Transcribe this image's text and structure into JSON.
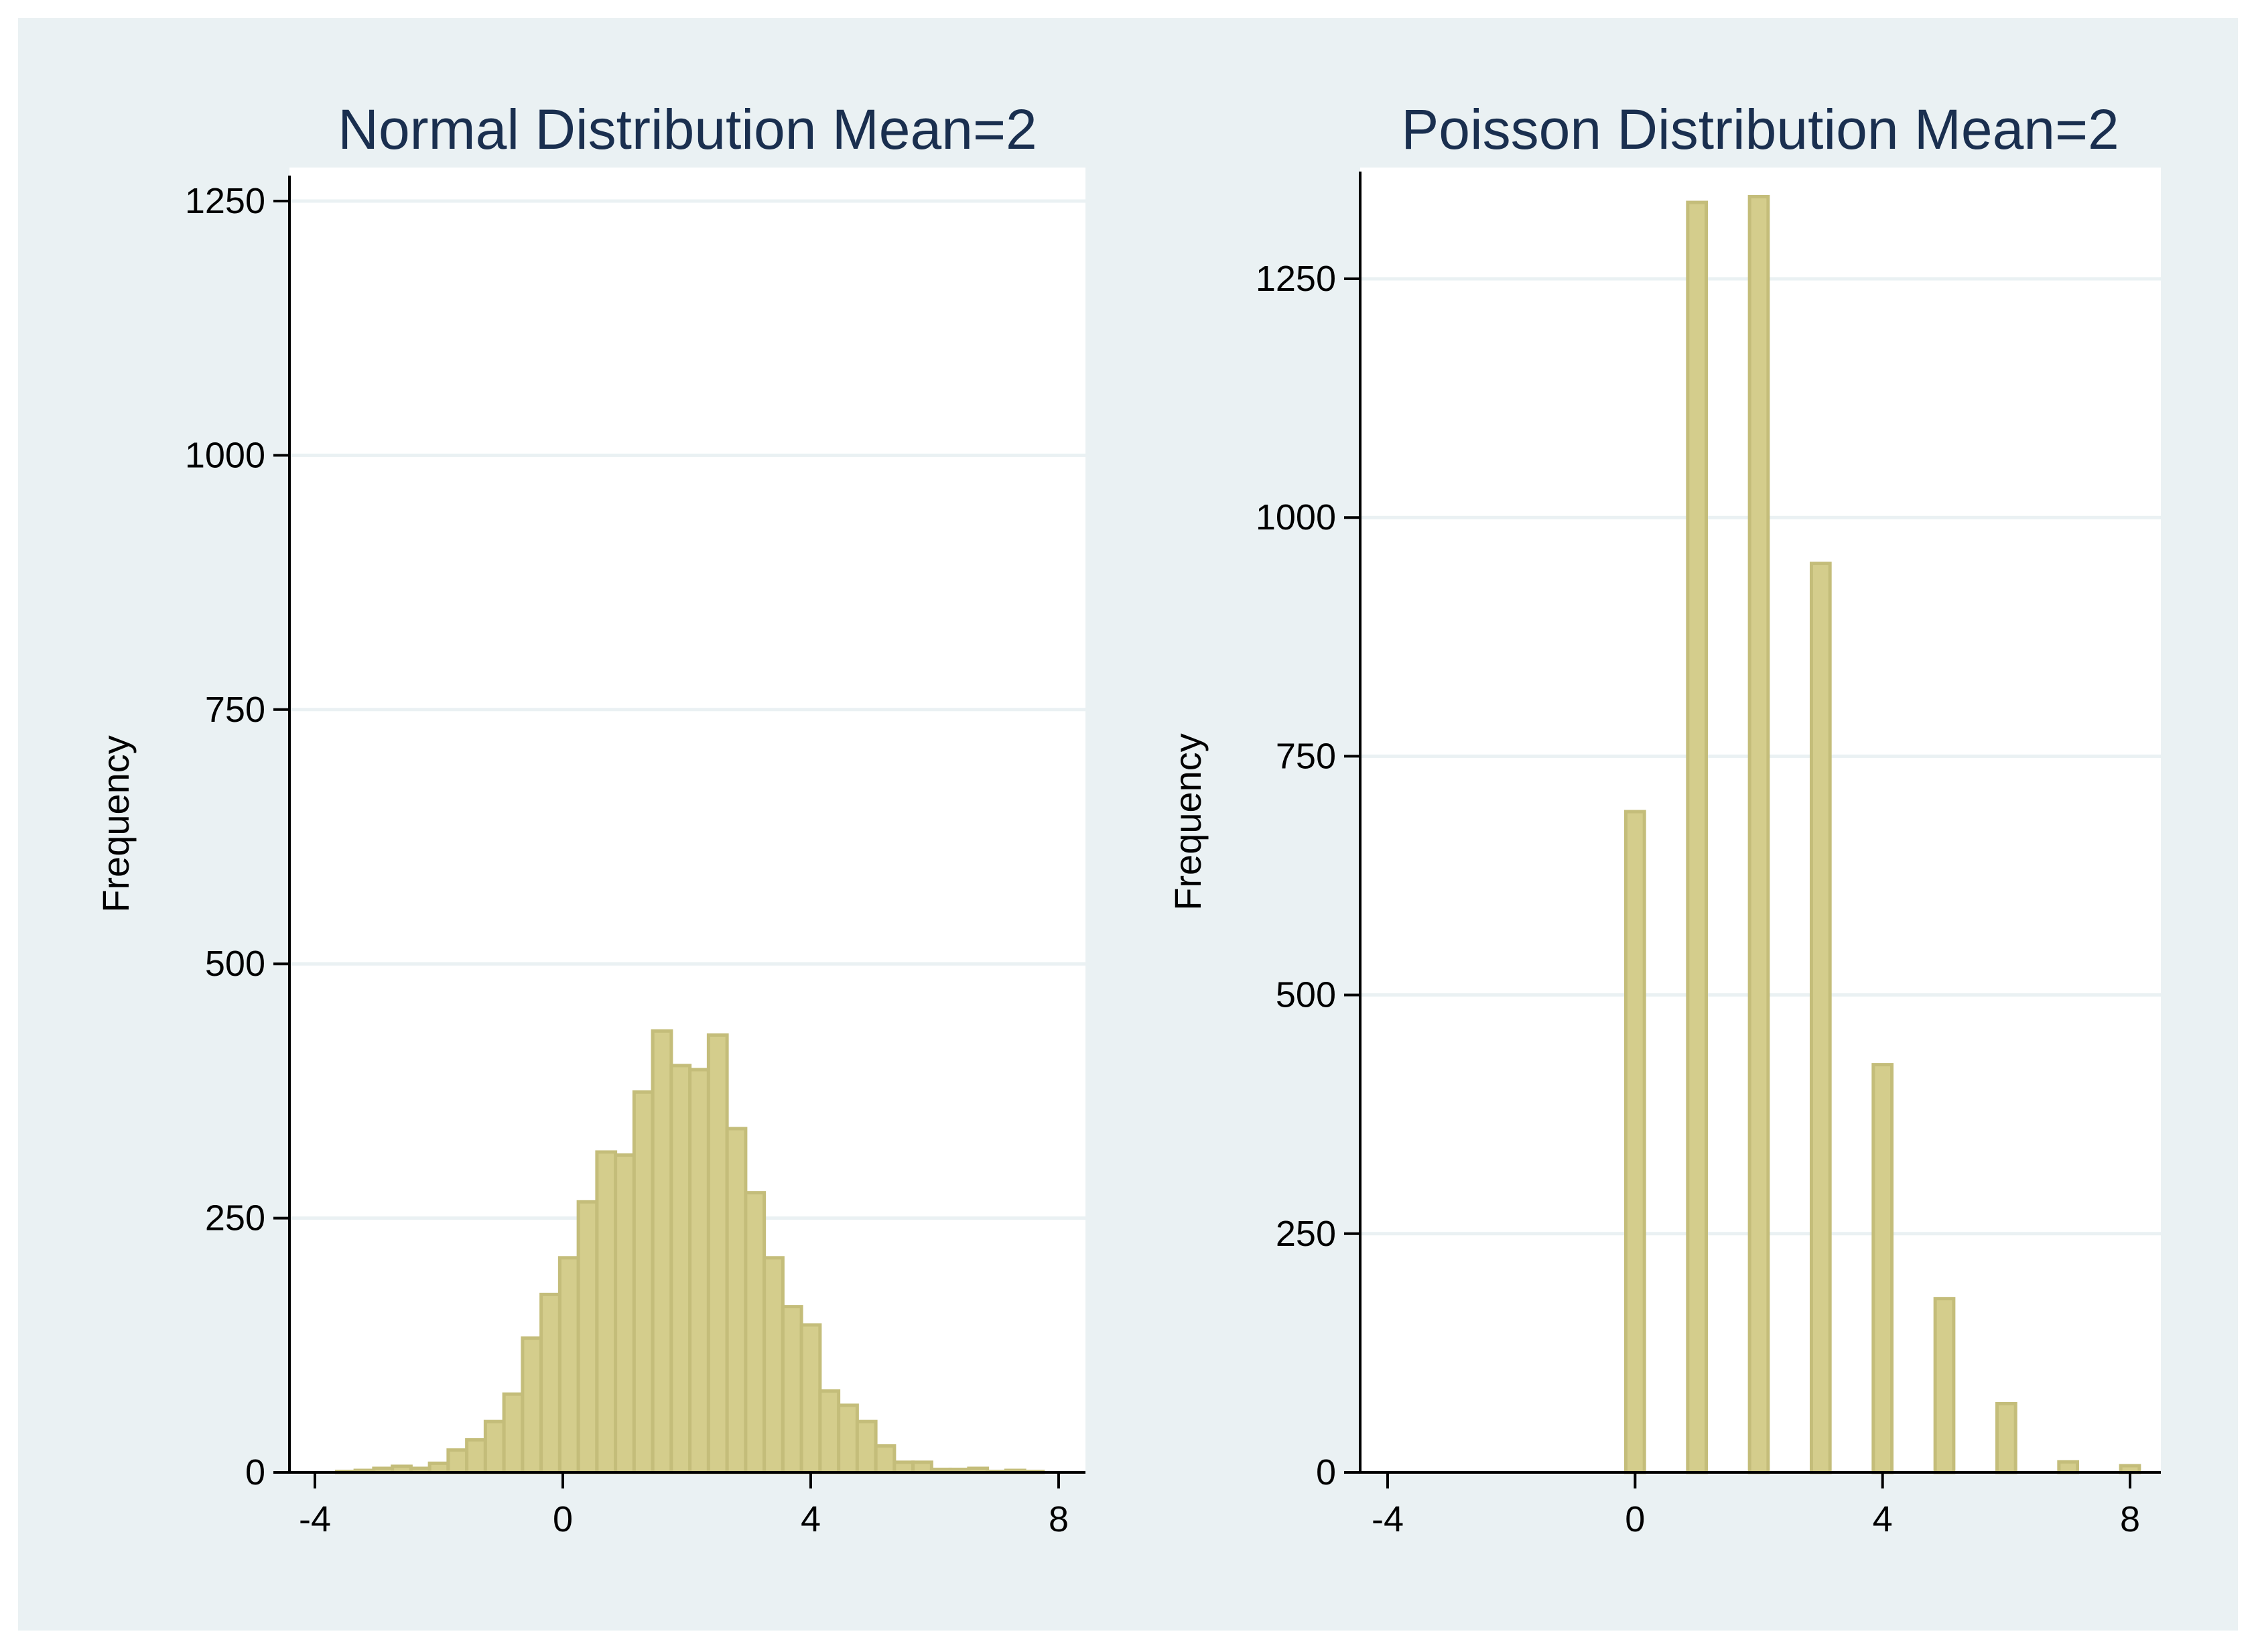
{
  "colors": {
    "outer_background": "#eaf1f3",
    "plot_background": "#ffffff",
    "gridline": "#eaf1f3",
    "axis": "#000000",
    "title": "#1a2f4f",
    "bar_fill": "#d4cd8c",
    "bar_edge": "#c4bd7a"
  },
  "chart_data": [
    {
      "type": "bar",
      "title": "Normal Distribution Mean=2",
      "xlabel": "",
      "ylabel": "Frequency",
      "xlim": [
        -4.4,
        8.4
      ],
      "ylim": [
        0,
        1290
      ],
      "xticks": [
        -4,
        0,
        4,
        8
      ],
      "yticks": [
        0,
        250,
        500,
        750,
        1000,
        1250
      ],
      "grid": true,
      "bin_width": 0.3,
      "bins": [
        {
          "x": -3.5,
          "value": 1
        },
        {
          "x": -3.2,
          "value": 2
        },
        {
          "x": -2.9,
          "value": 4
        },
        {
          "x": -2.6,
          "value": 6
        },
        {
          "x": -2.3,
          "value": 4
        },
        {
          "x": -2.0,
          "value": 9
        },
        {
          "x": -1.7,
          "value": 22
        },
        {
          "x": -1.4,
          "value": 32
        },
        {
          "x": -1.1,
          "value": 50
        },
        {
          "x": -0.8,
          "value": 77
        },
        {
          "x": -0.5,
          "value": 132
        },
        {
          "x": -0.2,
          "value": 175
        },
        {
          "x": 0.1,
          "value": 211
        },
        {
          "x": 0.4,
          "value": 266
        },
        {
          "x": 0.7,
          "value": 315
        },
        {
          "x": 1.0,
          "value": 312
        },
        {
          "x": 1.3,
          "value": 374
        },
        {
          "x": 1.6,
          "value": 434
        },
        {
          "x": 1.9,
          "value": 400
        },
        {
          "x": 2.2,
          "value": 396
        },
        {
          "x": 2.5,
          "value": 430
        },
        {
          "x": 2.8,
          "value": 338
        },
        {
          "x": 3.1,
          "value": 275
        },
        {
          "x": 3.4,
          "value": 211
        },
        {
          "x": 3.7,
          "value": 163
        },
        {
          "x": 4.0,
          "value": 145
        },
        {
          "x": 4.3,
          "value": 80
        },
        {
          "x": 4.6,
          "value": 66
        },
        {
          "x": 4.9,
          "value": 50
        },
        {
          "x": 5.2,
          "value": 26
        },
        {
          "x": 5.5,
          "value": 10
        },
        {
          "x": 5.8,
          "value": 10
        },
        {
          "x": 6.1,
          "value": 3
        },
        {
          "x": 6.4,
          "value": 3
        },
        {
          "x": 6.7,
          "value": 4
        },
        {
          "x": 7.0,
          "value": 1
        },
        {
          "x": 7.3,
          "value": 2
        },
        {
          "x": 7.6,
          "value": 1
        }
      ]
    },
    {
      "type": "bar",
      "title": "Poisson Distribution Mean=2",
      "xlabel": "",
      "ylabel": "Frequency",
      "xlim": [
        -4.4,
        8.4
      ],
      "ylim": [
        0,
        1360
      ],
      "xticks": [
        -4,
        0,
        4,
        8
      ],
      "yticks": [
        0,
        250,
        500,
        750,
        1000,
        1250
      ],
      "grid": true,
      "bin_width": 0.3,
      "bins": [
        {
          "x": 0,
          "value": 692
        },
        {
          "x": 1,
          "value": 1330
        },
        {
          "x": 2,
          "value": 1336
        },
        {
          "x": 3,
          "value": 952
        },
        {
          "x": 4,
          "value": 427
        },
        {
          "x": 5,
          "value": 182
        },
        {
          "x": 6,
          "value": 72
        },
        {
          "x": 7,
          "value": 11
        },
        {
          "x": 8,
          "value": 7
        }
      ]
    }
  ]
}
